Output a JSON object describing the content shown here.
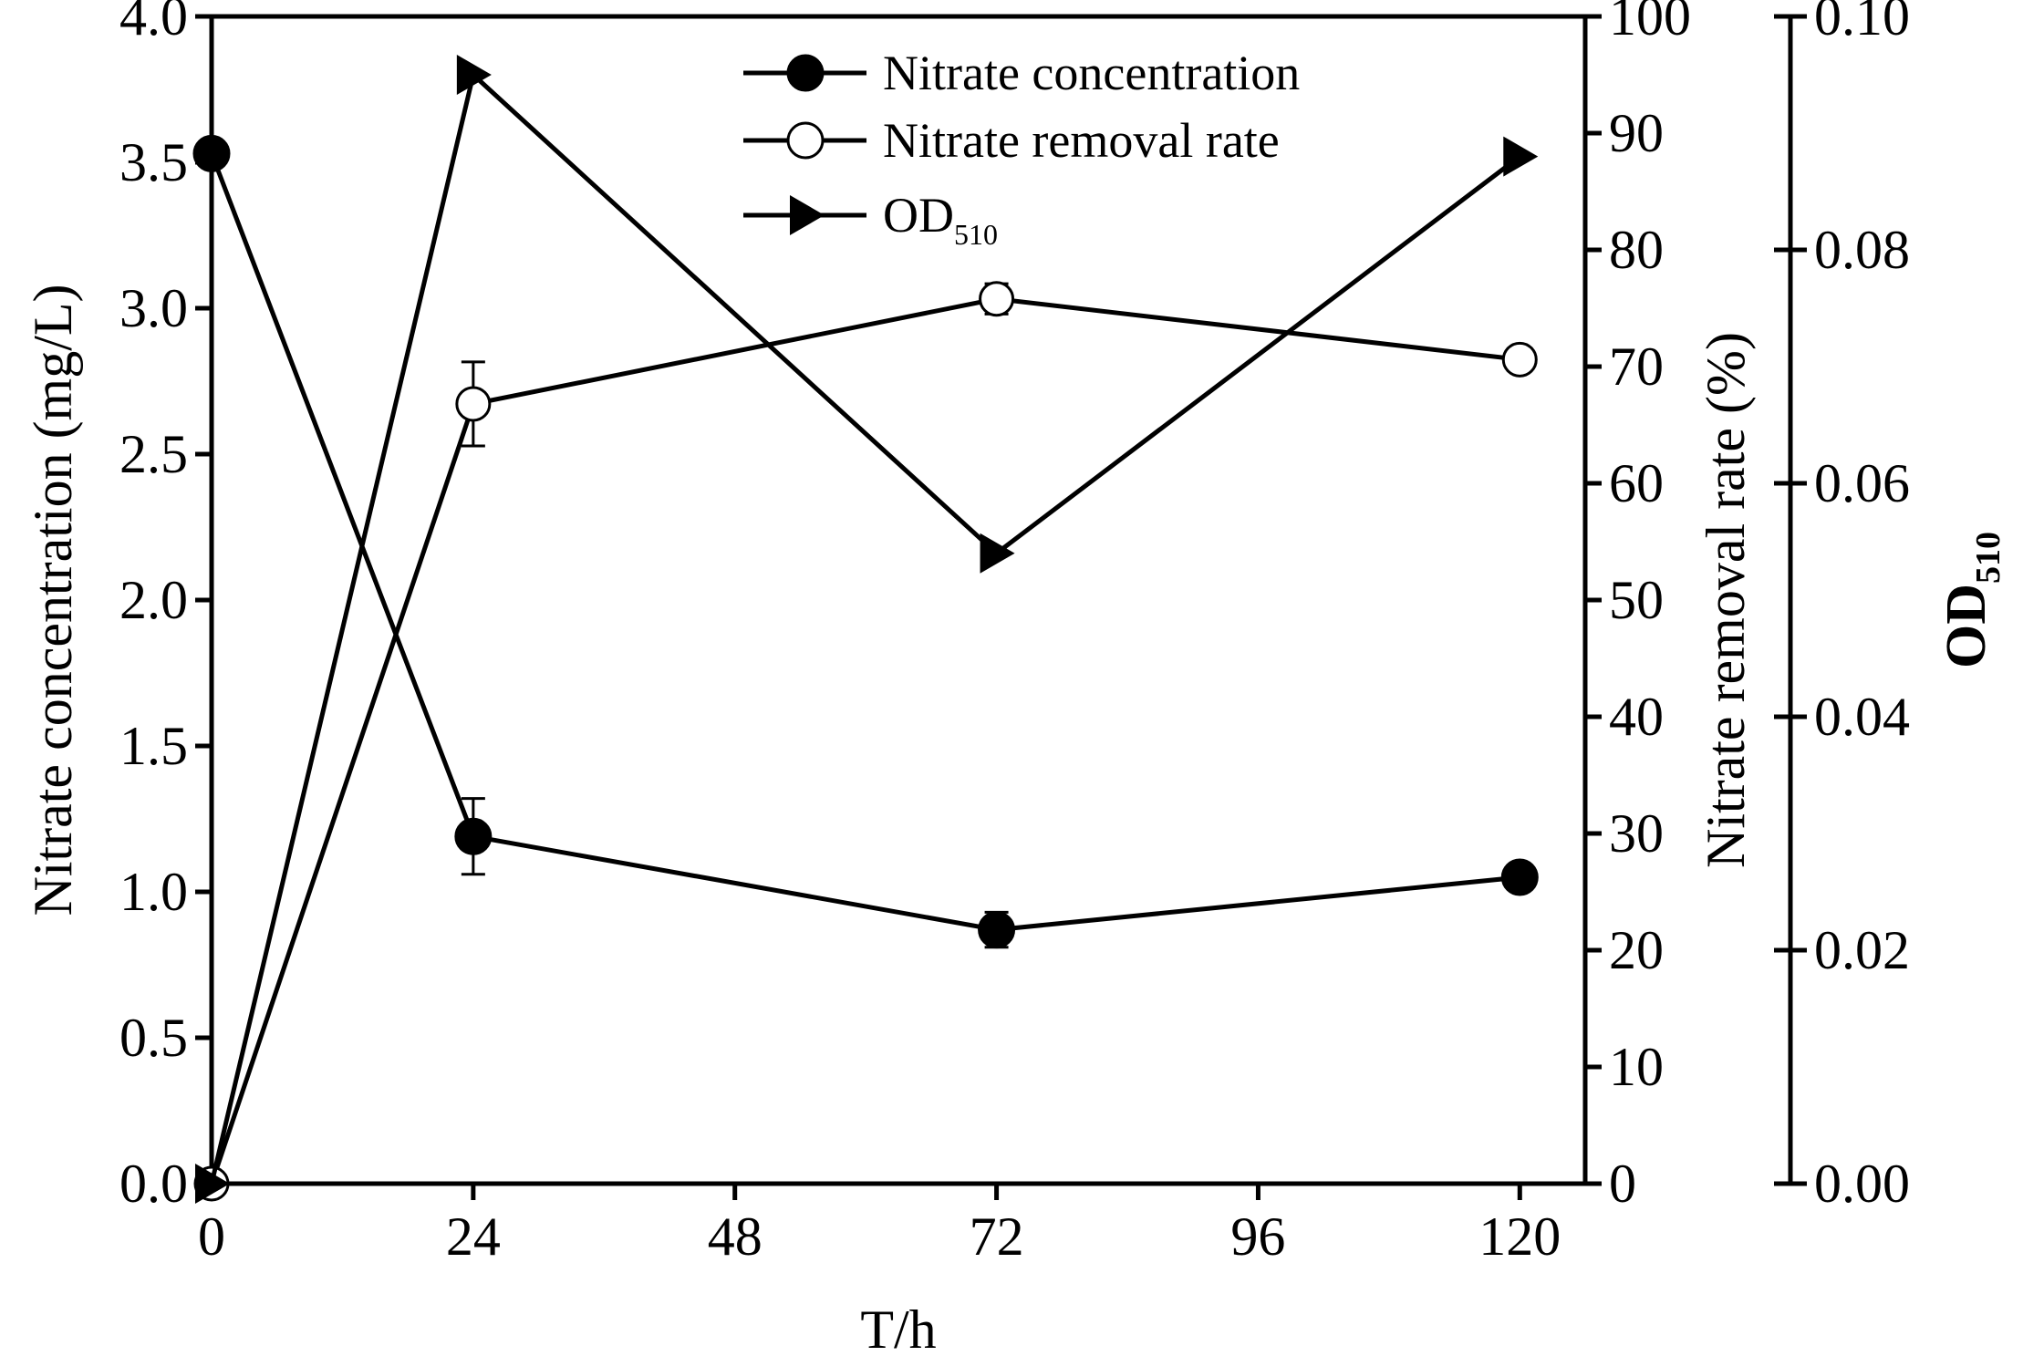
{
  "chart_data": {
    "type": "line",
    "x": [
      0,
      24,
      72,
      120
    ],
    "xlabel": "T/h",
    "xlim": [
      0,
      126
    ],
    "xticks": [
      0,
      24,
      48,
      72,
      96,
      120
    ],
    "axes": {
      "left": {
        "label": "Nitrate concentration (mg/L)",
        "ylim": [
          0,
          4.0
        ],
        "ticks": [
          0.0,
          0.5,
          1.0,
          1.5,
          2.0,
          2.5,
          3.0,
          3.5,
          4.0
        ],
        "tick_labels": [
          "0.0",
          "0.5",
          "1.0",
          "1.5",
          "2.0",
          "2.5",
          "3.0",
          "3.5",
          "4.0"
        ]
      },
      "right1": {
        "label": "Nitrate removal rate (%)",
        "ylim": [
          0,
          100
        ],
        "ticks": [
          0,
          10,
          20,
          30,
          40,
          50,
          60,
          70,
          80,
          90,
          100
        ],
        "tick_labels": [
          "0",
          "10",
          "20",
          "30",
          "40",
          "50",
          "60",
          "70",
          "80",
          "90",
          "100"
        ]
      },
      "right2": {
        "label_main": "OD",
        "label_sub": "510",
        "ylim": [
          0,
          0.1
        ],
        "ticks": [
          0.0,
          0.02,
          0.04,
          0.06,
          0.08,
          0.1
        ],
        "tick_labels": [
          "0.00",
          "0.02",
          "0.04",
          "0.06",
          "0.08",
          "0.10"
        ]
      }
    },
    "series": [
      {
        "name": "Nitrate concentration",
        "axis": "left",
        "marker": "filled-circle",
        "values": [
          3.53,
          1.19,
          0.87,
          1.05
        ],
        "errors": [
          0,
          0.13,
          0.06,
          0.04
        ]
      },
      {
        "name": "Nitrate removal rate",
        "axis": "right1",
        "marker": "open-circle",
        "values": [
          0,
          66.8,
          75.8,
          70.6
        ],
        "errors": [
          0,
          3.6,
          1.3,
          0.5
        ]
      },
      {
        "name": "OD",
        "name_sub": "510",
        "axis": "right2",
        "marker": "right-triangle",
        "values": [
          0,
          0.095,
          0.054,
          0.088
        ],
        "errors": [
          0,
          0,
          0,
          0
        ]
      }
    ],
    "legend": {
      "position": "top-center",
      "entries": [
        {
          "label": "Nitrate concentration",
          "sub": ""
        },
        {
          "label": "Nitrate removal rate",
          "sub": ""
        },
        {
          "label": "OD",
          "sub": "510"
        }
      ]
    }
  }
}
